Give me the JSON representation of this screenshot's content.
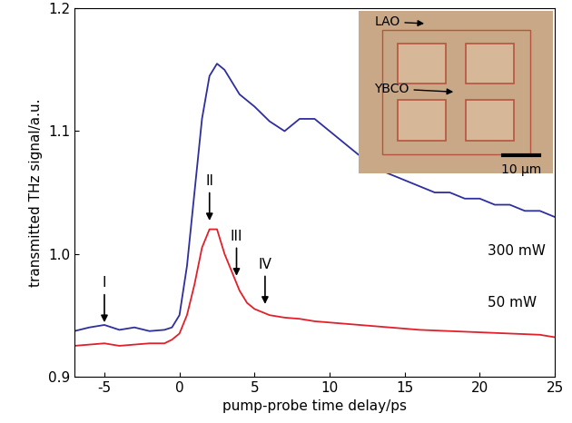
{
  "chart_data": {
    "type": "line",
    "x_label": "pump-probe time delay/ps",
    "y_label": "transmitted THz signal/a.u.",
    "xlim": [
      -7,
      25
    ],
    "xticks": [
      -5,
      0,
      5,
      10,
      15,
      20,
      25
    ],
    "ylim": [
      0.9,
      1.2
    ],
    "yticks": [
      {
        "value": 0.9,
        "label": "0.9"
      },
      {
        "value": 1.0,
        "label": "1.0"
      },
      {
        "value": 1.1,
        "label": "1.1"
      },
      {
        "value": 1.2,
        "label": "1.2"
      }
    ],
    "grid": false,
    "series": [
      {
        "name": "300 mW",
        "color": "#2e2e9e",
        "x": [
          -7,
          -6,
          -5,
          -4,
          -3,
          -2,
          -1,
          -0.5,
          0,
          0.5,
          1,
          1.5,
          2,
          2.5,
          3,
          3.5,
          4,
          5,
          6,
          7,
          8,
          9,
          10,
          11,
          12,
          13,
          14,
          15,
          16,
          17,
          18,
          19,
          20,
          21,
          22,
          23,
          24,
          25
        ],
        "values": [
          0.937,
          0.94,
          0.942,
          0.938,
          0.94,
          0.937,
          0.938,
          0.94,
          0.95,
          0.99,
          1.05,
          1.11,
          1.145,
          1.155,
          1.15,
          1.14,
          1.13,
          1.12,
          1.108,
          1.1,
          1.11,
          1.11,
          1.1,
          1.09,
          1.08,
          1.07,
          1.065,
          1.06,
          1.055,
          1.05,
          1.05,
          1.045,
          1.045,
          1.04,
          1.04,
          1.035,
          1.035,
          1.03
        ]
      },
      {
        "name": "50 mW",
        "color": "#e0202a",
        "x": [
          -7,
          -6,
          -5,
          -4,
          -3,
          -2,
          -1,
          -0.5,
          0,
          0.5,
          1,
          1.5,
          2,
          2.5,
          3,
          3.5,
          4,
          4.5,
          5,
          6,
          7,
          8,
          9,
          10,
          12,
          14,
          16,
          18,
          20,
          22,
          24,
          25
        ],
        "values": [
          0.925,
          0.926,
          0.927,
          0.925,
          0.926,
          0.927,
          0.927,
          0.93,
          0.935,
          0.95,
          0.975,
          1.005,
          1.02,
          1.02,
          1.0,
          0.985,
          0.97,
          0.96,
          0.955,
          0.95,
          0.948,
          0.947,
          0.945,
          0.944,
          0.942,
          0.94,
          0.938,
          0.937,
          0.936,
          0.935,
          0.934,
          0.932
        ]
      }
    ],
    "annotations": [
      {
        "text": "I",
        "x": -5,
        "y": 0.942
      },
      {
        "text": "II",
        "x": 2,
        "y": 1.025
      },
      {
        "text": "III",
        "x": 3.8,
        "y": 0.98
      },
      {
        "text": "IV",
        "x": 5.7,
        "y": 0.957
      }
    ],
    "inset": {
      "labels": [
        "LAO",
        "YBCO"
      ],
      "scale_bar": "10 μm"
    }
  }
}
